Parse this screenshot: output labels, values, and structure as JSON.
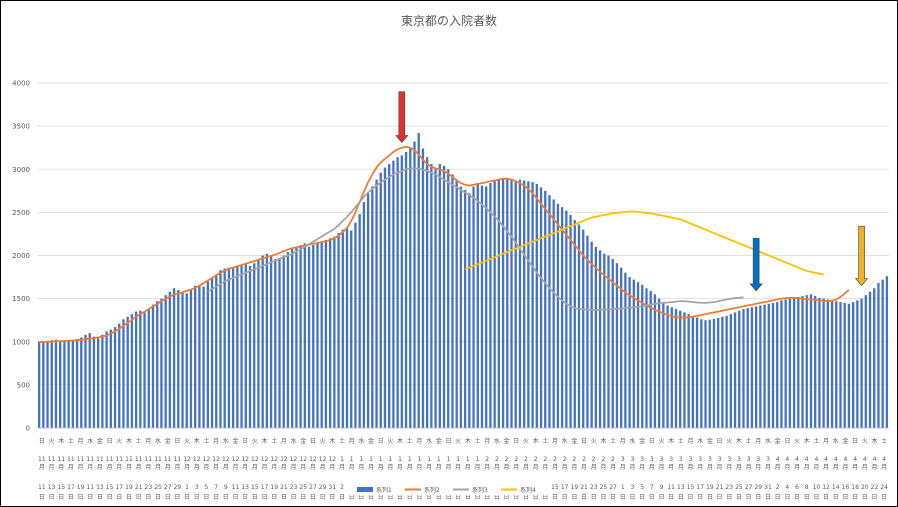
{
  "chart_data": {
    "type": "bar",
    "title": "東京都の入院者数",
    "xlabel": "",
    "ylabel": "",
    "ylim": [
      0,
      4000
    ],
    "yticks": [
      0,
      500,
      1000,
      1500,
      2000,
      2500,
      3000,
      3500,
      4000
    ],
    "grid": true,
    "legend_position": "bottom",
    "x_day_labels": [
      "11",
      "13",
      "15",
      "17",
      "19",
      "11",
      "13",
      "15",
      "17",
      "19",
      "21",
      "23",
      "25",
      "27",
      "29",
      "1",
      "3",
      "5",
      "7",
      "9",
      "11",
      "13",
      "15",
      "17",
      "19",
      "21",
      "23",
      "25",
      "27",
      "29",
      "31",
      "2",
      "4",
      "6",
      "8",
      "10",
      "12",
      "14",
      "16",
      "18",
      "20",
      "22",
      "24",
      "26",
      "28",
      "30",
      "1",
      "3",
      "5",
      "7",
      "9",
      "11",
      "13",
      "15",
      "17",
      "19",
      "21",
      "23",
      "25",
      "27",
      "1",
      "3",
      "5",
      "7",
      "9",
      "11",
      "13",
      "15",
      "17",
      "19",
      "21",
      "23",
      "25",
      "27",
      "29",
      "31",
      "2",
      "4",
      "6",
      "8",
      "10",
      "12",
      "14",
      "16",
      "18",
      "20",
      "22",
      "24"
    ],
    "x_weekday_labels": [
      "日",
      "火",
      "木",
      "土",
      "月",
      "水",
      "金",
      "日",
      "火",
      "木",
      "土",
      "月",
      "水",
      "金",
      "日",
      "火",
      "木",
      "土",
      "月",
      "水",
      "金",
      "日",
      "火",
      "木",
      "土",
      "月",
      "水",
      "金",
      "日",
      "火",
      "木",
      "土",
      "月",
      "水",
      "金",
      "日",
      "火",
      "木",
      "土",
      "月",
      "水",
      "金",
      "日",
      "火",
      "木",
      "土",
      "月",
      "水",
      "金",
      "日",
      "火",
      "木",
      "土",
      "月",
      "水",
      "金",
      "日",
      "火",
      "木",
      "土",
      "月",
      "水",
      "金",
      "日",
      "火",
      "木",
      "土",
      "月",
      "水",
      "金",
      "日",
      "火",
      "木",
      "土",
      "月",
      "水",
      "金",
      "日",
      "火",
      "木",
      "土",
      "月",
      "水",
      "金",
      "日",
      "火",
      "木",
      "土"
    ],
    "x_month_labels": [
      "11",
      "11",
      "11",
      "11",
      "11",
      "11",
      "11",
      "11",
      "11",
      "11",
      "11",
      "11",
      "11",
      "11",
      "11",
      "12",
      "12",
      "12",
      "12",
      "12",
      "12",
      "12",
      "12",
      "12",
      "12",
      "12",
      "12",
      "12",
      "12",
      "12",
      "12",
      "1",
      "1",
      "1",
      "1",
      "1",
      "1",
      "1",
      "1",
      "1",
      "1",
      "1",
      "1",
      "1",
      "1",
      "1",
      "2",
      "2",
      "2",
      "2",
      "2",
      "2",
      "2",
      "2",
      "2",
      "2",
      "2",
      "2",
      "2",
      "2",
      "3",
      "3",
      "3",
      "3",
      "3",
      "3",
      "3",
      "3",
      "3",
      "3",
      "3",
      "3",
      "3",
      "3",
      "3",
      "3",
      "4",
      "4",
      "4",
      "4",
      "4",
      "4",
      "4",
      "4",
      "4",
      "4",
      "4",
      "4"
    ],
    "x_unit_month": "月",
    "x_unit_day": "日",
    "series": [
      {
        "name": "系列1",
        "type": "bar",
        "color": "#4472C4",
        "values": [
          1005,
          1008,
          1012,
          1018,
          1025,
          1000,
          1005,
          1010,
          1020,
          1030,
          1050,
          1080,
          1100,
          1060,
          1040,
          1080,
          1120,
          1140,
          1170,
          1210,
          1260,
          1290,
          1320,
          1350,
          1360,
          1340,
          1380,
          1430,
          1470,
          1500,
          1540,
          1580,
          1620,
          1600,
          1580,
          1560,
          1610,
          1650,
          1660,
          1640,
          1700,
          1740,
          1780,
          1830,
          1850,
          1860,
          1850,
          1870,
          1890,
          1900,
          1880,
          1910,
          1960,
          2000,
          2020,
          1990,
          1960,
          1970,
          2000,
          2040,
          2080,
          2100,
          2120,
          2140,
          2100,
          2120,
          2140,
          2160,
          2180,
          2200,
          2220,
          2260,
          2300,
          2320,
          2290,
          2380,
          2480,
          2620,
          2720,
          2800,
          2880,
          2960,
          3020,
          3060,
          3100,
          3140,
          3160,
          3200,
          3240,
          3320,
          3420,
          3240,
          3140,
          3060,
          3000,
          3060,
          3040,
          3000,
          2940,
          2880,
          2800,
          2760,
          2720,
          2800,
          2840,
          2810,
          2800,
          2840,
          2870,
          2880,
          2900,
          2890,
          2880,
          2870,
          2880,
          2870,
          2860,
          2850,
          2830,
          2790,
          2750,
          2700,
          2650,
          2600,
          2560,
          2520,
          2470,
          2410,
          2360,
          2300,
          2230,
          2160,
          2100,
          2060,
          2020,
          2000,
          1960,
          1910,
          1860,
          1800,
          1750,
          1720,
          1690,
          1660,
          1620,
          1590,
          1550,
          1500,
          1460,
          1420,
          1400,
          1380,
          1360,
          1340,
          1320,
          1300,
          1280,
          1260,
          1250,
          1255,
          1265,
          1275,
          1290,
          1300,
          1320,
          1340,
          1360,
          1380,
          1390,
          1400,
          1410,
          1420,
          1430,
          1440,
          1450,
          1460,
          1480,
          1490,
          1500,
          1510,
          1520,
          1530,
          1540,
          1550,
          1530,
          1510,
          1500,
          1490,
          1480,
          1470,
          1460,
          1450,
          1440,
          1460,
          1480,
          1500,
          1540,
          1580,
          1620,
          1680,
          1720,
          1760
        ]
      },
      {
        "name": "系列2",
        "type": "line",
        "color": "#ED7D31",
        "values": [
          995,
          998,
          1000,
          1002,
          1005,
          1008,
          1010,
          1012,
          1015,
          1018,
          1022,
          1028,
          1035,
          1042,
          1050,
          1060,
          1075,
          1095,
          1120,
          1150,
          1185,
          1220,
          1255,
          1290,
          1320,
          1350,
          1380,
          1410,
          1440,
          1470,
          1500,
          1525,
          1545,
          1560,
          1575,
          1590,
          1605,
          1625,
          1650,
          1680,
          1710,
          1740,
          1770,
          1800,
          1825,
          1845,
          1860,
          1875,
          1890,
          1905,
          1920,
          1935,
          1950,
          1965,
          1980,
          1995,
          2010,
          2030,
          2050,
          2070,
          2085,
          2095,
          2105,
          2115,
          2125,
          2135,
          2145,
          2155,
          2165,
          2180,
          2200,
          2230,
          2270,
          2320,
          2400,
          2500,
          2620,
          2740,
          2850,
          2940,
          3020,
          3080,
          3120,
          3160,
          3200,
          3230,
          3250,
          3260,
          3250,
          3220,
          3170,
          3110,
          3060,
          3030,
          3010,
          3000,
          2980,
          2950,
          2910,
          2870,
          2840,
          2820,
          2810,
          2820,
          2830,
          2840,
          2850,
          2860,
          2870,
          2880,
          2890,
          2890,
          2880,
          2860,
          2840,
          2810,
          2770,
          2720,
          2660,
          2600,
          2540,
          2480,
          2420,
          2360,
          2300,
          2240,
          2180,
          2120,
          2060,
          2000,
          1950,
          1900,
          1855,
          1810,
          1770,
          1730,
          1690,
          1650,
          1610,
          1570,
          1540,
          1510,
          1480,
          1450,
          1420,
          1395,
          1370,
          1350,
          1330,
          1310,
          1295,
          1285,
          1280,
          1280,
          1285,
          1290,
          1300,
          1310,
          1320,
          1330,
          1340,
          1350,
          1360,
          1370,
          1380,
          1390,
          1400,
          1410,
          1420,
          1430,
          1440,
          1450,
          1460,
          1470,
          1480,
          1490,
          1500,
          1505,
          1510,
          1510,
          1505,
          1500,
          1495,
          1490,
          1485,
          1480,
          1475,
          1470,
          1475,
          1490,
          1520,
          1560,
          1600
        ]
      },
      {
        "name": "系列3",
        "type": "line",
        "color": "#A5A5A5",
        "start_index": 40,
        "values": [
          1580,
          1610,
          1640,
          1670,
          1700,
          1720,
          1740,
          1760,
          1780,
          1800,
          1820,
          1840,
          1860,
          1880,
          1900,
          1920,
          1940,
          1960,
          1980,
          2000,
          2020,
          2045,
          2070,
          2100,
          2130,
          2160,
          2190,
          2220,
          2250,
          2280,
          2310,
          2350,
          2400,
          2450,
          2500,
          2560,
          2620,
          2680,
          2730,
          2770,
          2810,
          2850,
          2880,
          2910,
          2940,
          2960,
          2980,
          3000,
          3010,
          3010,
          3005,
          2995,
          2980,
          2960,
          2940,
          2910,
          2880,
          2850,
          2820,
          2790,
          2760,
          2730,
          2700,
          2670,
          2630,
          2590,
          2550,
          2500,
          2450,
          2400,
          2340,
          2280,
          2220,
          2150,
          2080,
          2010,
          1940,
          1870,
          1800,
          1740,
          1680,
          1620,
          1570,
          1520,
          1480,
          1440,
          1410,
          1390,
          1380,
          1375,
          1372,
          1370,
          1368,
          1370,
          1372,
          1375,
          1378,
          1382,
          1386,
          1390,
          1395,
          1400,
          1405,
          1410,
          1420,
          1430,
          1440,
          1445,
          1450,
          1455,
          1460,
          1465,
          1470,
          1470,
          1465,
          1460,
          1455,
          1450,
          1450,
          1455,
          1460,
          1470,
          1480,
          1490,
          1500,
          1505,
          1510,
          1515
        ]
      },
      {
        "name": "系列4",
        "type": "line",
        "color": "#FFC000",
        "start_index": 101,
        "values": [
          1840,
          1860,
          1880,
          1900,
          1920,
          1940,
          1960,
          1980,
          2000,
          2020,
          2040,
          2060,
          2080,
          2100,
          2120,
          2140,
          2160,
          2180,
          2200,
          2220,
          2240,
          2260,
          2280,
          2300,
          2320,
          2340,
          2360,
          2380,
          2400,
          2420,
          2440,
          2450,
          2460,
          2470,
          2480,
          2490,
          2495,
          2500,
          2505,
          2510,
          2510,
          2505,
          2500,
          2495,
          2490,
          2480,
          2470,
          2460,
          2450,
          2440,
          2430,
          2420,
          2400,
          2380,
          2360,
          2340,
          2320,
          2300,
          2280,
          2260,
          2240,
          2220,
          2200,
          2180,
          2160,
          2140,
          2120,
          2100,
          2080,
          2060,
          2040,
          2020,
          2000,
          1980,
          1960,
          1940,
          1920,
          1900,
          1880,
          1860,
          1840,
          1820,
          1810,
          1800,
          1790,
          1780
        ]
      }
    ],
    "annotations": [
      {
        "type": "arrow-down",
        "color": "#E03030",
        "x_index": 86,
        "y_top": 3900,
        "y_bottom": 3310
      },
      {
        "type": "arrow-down",
        "color": "#0070C0",
        "x_index": 170,
        "y_top": 2200,
        "y_bottom": 1590
      },
      {
        "type": "arrow-down",
        "color": "#F0B020",
        "x_index": 195,
        "y_top": 2340,
        "y_bottom": 1650
      }
    ]
  }
}
